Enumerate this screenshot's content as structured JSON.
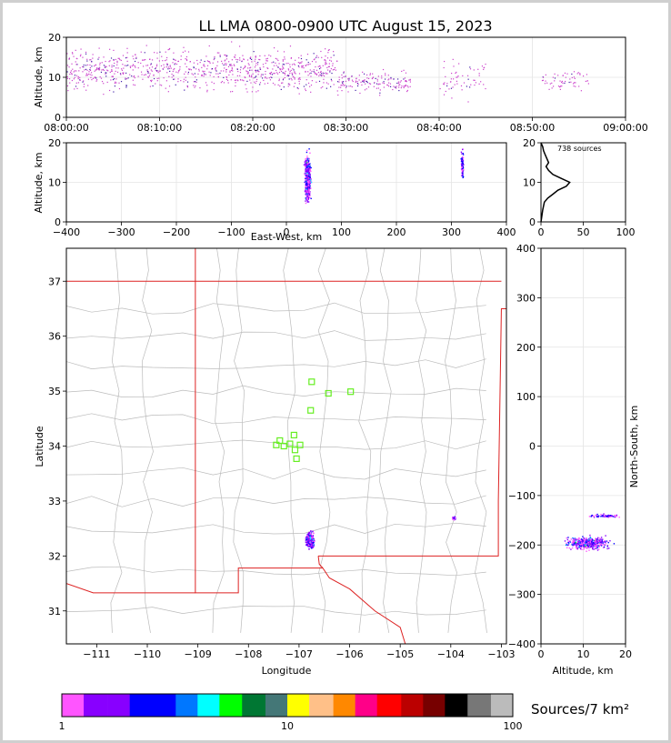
{
  "title": "LL LMA 0800-0900 UTC August 15, 2023",
  "colorbar": {
    "label": "Sources/7 km²",
    "tick_labels": [
      "1",
      "10",
      "100"
    ],
    "colors": [
      "#ff55ff",
      "#8800ff",
      "#8800ff",
      "#0000ff",
      "#0000ff",
      "#0077ff",
      "#00ffff",
      "#00ff00",
      "#007733",
      "#447777",
      "#ffff00",
      "#ffc088",
      "#ff8800",
      "#ff0088",
      "#ff0000",
      "#bb0000",
      "#770000",
      "#000000",
      "#777777",
      "#bbbbbb",
      "#ffffff"
    ]
  },
  "chart_data": [
    {
      "id": "time-altitude",
      "type": "scatter",
      "ylabel": "Altitude, km",
      "xlim": [
        "08:00:00",
        "09:00:00"
      ],
      "ylim": [
        0,
        20
      ],
      "x_tick_labels": [
        "08:00:00",
        "08:10:00",
        "08:20:00",
        "08:30:00",
        "08:40:00",
        "08:50:00",
        "09:00:00"
      ],
      "y_tick_labels": [
        "0",
        "10",
        "20"
      ],
      "grid": true,
      "point_color": "#cc44cc",
      "clusters": [
        {
          "t_start": "08:00",
          "t_end": "08:29",
          "alt_min": 5,
          "alt_max": 19,
          "density": "high"
        },
        {
          "t_start": "08:29",
          "t_end": "08:37",
          "alt_min": 5,
          "alt_max": 13,
          "density": "medium"
        },
        {
          "t_start": "08:40",
          "t_end": "08:45",
          "alt_min": 4,
          "alt_max": 16,
          "density": "low"
        },
        {
          "t_start": "08:51",
          "t_end": "08:56",
          "alt_min": 6,
          "alt_max": 13,
          "density": "low"
        }
      ]
    },
    {
      "id": "ew-altitude",
      "type": "scatter",
      "xlabel": "East-West, km",
      "ylabel": "Altitude, km",
      "xlim": [
        -400,
        400
      ],
      "ylim": [
        0,
        20
      ],
      "x_tick_labels": [
        "−400",
        "−300",
        "−200",
        "−100",
        "0",
        "100",
        "200",
        "300",
        "400"
      ],
      "y_tick_labels": [
        "0",
        "10",
        "20"
      ],
      "grid": true,
      "clusters": [
        {
          "x_center": 38,
          "x_spread": 8,
          "alt_min": 3,
          "alt_max": 19
        },
        {
          "x_center": 319,
          "x_spread": 4,
          "alt_min": 9,
          "alt_max": 20
        }
      ]
    },
    {
      "id": "altitude-histogram",
      "type": "line",
      "annotation": "738 sources",
      "xlim": [
        0,
        100
      ],
      "ylim": [
        0,
        20
      ],
      "x_tick_labels": [
        "0",
        "50",
        "100"
      ],
      "y_tick_labels": [
        "0",
        "10",
        "20"
      ],
      "grid": true,
      "points": [
        [
          0,
          0
        ],
        [
          2,
          3
        ],
        [
          4,
          5
        ],
        [
          8,
          6
        ],
        [
          14,
          7
        ],
        [
          20,
          8
        ],
        [
          30,
          9
        ],
        [
          34,
          10
        ],
        [
          24,
          11
        ],
        [
          14,
          12
        ],
        [
          9,
          13
        ],
        [
          6,
          14
        ],
        [
          9,
          15
        ],
        [
          7,
          16
        ],
        [
          5,
          17
        ],
        [
          3,
          18
        ],
        [
          2,
          19
        ],
        [
          0,
          20
        ]
      ]
    },
    {
      "id": "plan-view",
      "type": "map",
      "xlabel": "Longitude",
      "ylabel": "Latitude",
      "xlim": [
        -111.6,
        -102.9
      ],
      "ylim": [
        30.4,
        37.6
      ],
      "x_tick_labels": [
        "−111",
        "−110",
        "−109",
        "−108",
        "−107",
        "−106",
        "−105",
        "−104",
        "−103"
      ],
      "y_tick_labels": [
        "31",
        "32",
        "33",
        "34",
        "35",
        "36",
        "37"
      ],
      "stations": [
        {
          "lon": -106.75,
          "lat": 35.17
        },
        {
          "lon": -106.42,
          "lat": 34.96
        },
        {
          "lon": -105.98,
          "lat": 34.99
        },
        {
          "lon": -106.77,
          "lat": 34.65
        },
        {
          "lon": -107.1,
          "lat": 34.2
        },
        {
          "lon": -107.38,
          "lat": 34.1
        },
        {
          "lon": -107.45,
          "lat": 34.02
        },
        {
          "lon": -107.3,
          "lat": 34.0
        },
        {
          "lon": -107.18,
          "lat": 34.04
        },
        {
          "lon": -106.98,
          "lat": 34.02
        },
        {
          "lon": -107.08,
          "lat": 33.93
        },
        {
          "lon": -107.05,
          "lat": 33.77
        }
      ],
      "clusters": [
        {
          "lon_center": -106.8,
          "lat_center": 32.3,
          "lon_spread": 0.12,
          "lat_spread": 0.2
        },
        {
          "lon_center": -103.95,
          "lat_center": 32.7,
          "lon_spread": 0.05,
          "lat_spread": 0.04
        }
      ]
    },
    {
      "id": "altitude-ns",
      "type": "scatter",
      "xlabel": "Altitude, km",
      "ylabel": "North-South, km",
      "xlim": [
        0,
        20
      ],
      "ylim": [
        -400,
        400
      ],
      "x_tick_labels": [
        "0",
        "10",
        "20"
      ],
      "y_tick_labels": [
        "−400",
        "−300",
        "−200",
        "−100",
        "0",
        "100",
        "200",
        "300",
        "400"
      ],
      "grid": true,
      "clusters": [
        {
          "alt_min": 4,
          "alt_max": 18,
          "ns_center": -195,
          "ns_spread": 18
        },
        {
          "alt_min": 10,
          "alt_max": 20,
          "ns_center": -140,
          "ns_spread": 5
        }
      ]
    }
  ]
}
